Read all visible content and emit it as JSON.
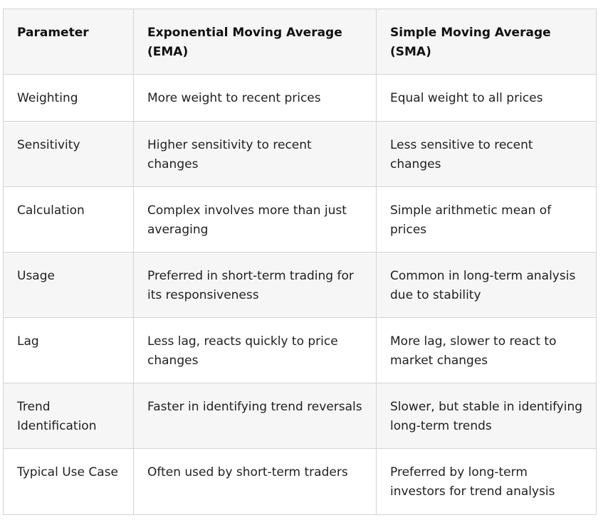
{
  "table": {
    "headers": [
      "Parameter",
      "Exponential Moving Average (EMA)",
      "Simple Moving Average (SMA)"
    ],
    "rows": [
      [
        "Weighting",
        "More weight to recent prices",
        "Equal weight to all prices"
      ],
      [
        "Sensitivity",
        "Higher sensitivity to recent changes",
        "Less sensitive to recent changes"
      ],
      [
        "Calculation",
        "Complex involves more than just averaging",
        "Simple arithmetic mean of prices"
      ],
      [
        "Usage",
        "Preferred in short-term trading for its responsiveness",
        "Common in long-term analysis due to stability"
      ],
      [
        "Lag",
        "Less lag, reacts quickly to price changes",
        "More lag, slower to react to market changes"
      ],
      [
        "Trend Identification",
        "Faster in identifying trend reversals",
        "Slower, but stable in identifying long-term trends"
      ],
      [
        "Typical Use Case",
        "Often used by short-term traders",
        "Preferred by long-term investors for trend analysis"
      ]
    ]
  },
  "colors": {
    "header_bg": "#f6f6f6",
    "alt_row_bg": "#f6f6f6",
    "border": "#d4d4d4",
    "text": "#1f1f1f"
  }
}
